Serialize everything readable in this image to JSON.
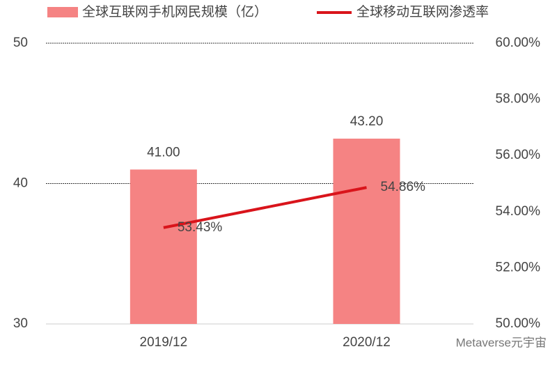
{
  "chart_data": {
    "type": "bar_line",
    "categories": [
      "2019/12",
      "2020/12"
    ],
    "series": [
      {
        "name": "全球互联网手机网民规模（亿）",
        "color": "#f58383",
        "values": [
          41.0,
          43.2
        ],
        "value_labels": [
          "41.00",
          "43.20"
        ]
      },
      {
        "name": "全球移动互联网渗透率",
        "color": "#d9141b",
        "values": [
          53.43,
          54.86
        ],
        "value_labels": [
          "53.43%",
          "54.86%"
        ],
        "axis": "y2"
      }
    ],
    "ylim": [
      30,
      50
    ],
    "yticks": [
      30,
      40,
      50
    ],
    "y2lim": [
      50,
      60
    ],
    "y2ticks": [
      {
        "value": 50,
        "label": "50.00%"
      },
      {
        "value": 52,
        "label": "52.00%"
      },
      {
        "value": 54,
        "label": "54.00%"
      },
      {
        "value": 56,
        "label": "56.00%"
      },
      {
        "value": 58,
        "label": "58.00%"
      },
      {
        "value": 60,
        "label": "60.00%"
      }
    ],
    "grid": true,
    "watermark": "Metaverse元宇宙"
  }
}
